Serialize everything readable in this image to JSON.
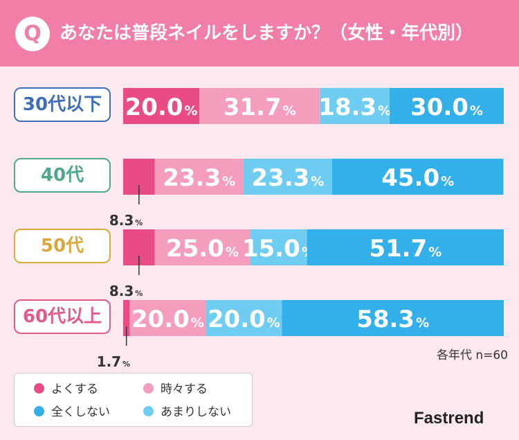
{
  "header": {
    "badge": "Q",
    "title": "あなたは普段ネイルをしますか？（女性・年代別）",
    "color": "#f07ea6"
  },
  "note": "各年代 n=60",
  "brand": "Fastrend",
  "chart_data": {
    "type": "bar",
    "orientation": "horizontal",
    "stacked": true,
    "title": "あなたは普段ネイルをしますか？（女性・年代別）",
    "categories": [
      "30代以下",
      "40代",
      "50代",
      "60代以上"
    ],
    "category_colors": [
      "#3e6eb8",
      "#4fa888",
      "#d8a93c",
      "#e25a8a"
    ],
    "xlim": [
      0,
      100
    ],
    "unit": "%",
    "series": [
      {
        "name": "よくする",
        "color": "#e94c84",
        "values": [
          20.0,
          8.3,
          8.3,
          1.7
        ]
      },
      {
        "name": "時々する",
        "color": "#f49dbd",
        "values": [
          31.7,
          23.3,
          25.0,
          20.0
        ]
      },
      {
        "name": "あまりしない",
        "color": "#6fcdf1",
        "values": [
          18.3,
          23.3,
          15.0,
          20.0
        ]
      },
      {
        "name": "全くしない",
        "color": "#33b0ea",
        "values": [
          30.0,
          45.0,
          51.7,
          58.3
        ]
      }
    ]
  },
  "legend": {
    "items": [
      {
        "name": "よくする",
        "color": "#e94c84"
      },
      {
        "name": "時々する",
        "color": "#f49dbd"
      },
      {
        "name": "全くしない",
        "color": "#33b0ea"
      },
      {
        "name": "あまりしない",
        "color": "#6fcdf1"
      }
    ]
  }
}
